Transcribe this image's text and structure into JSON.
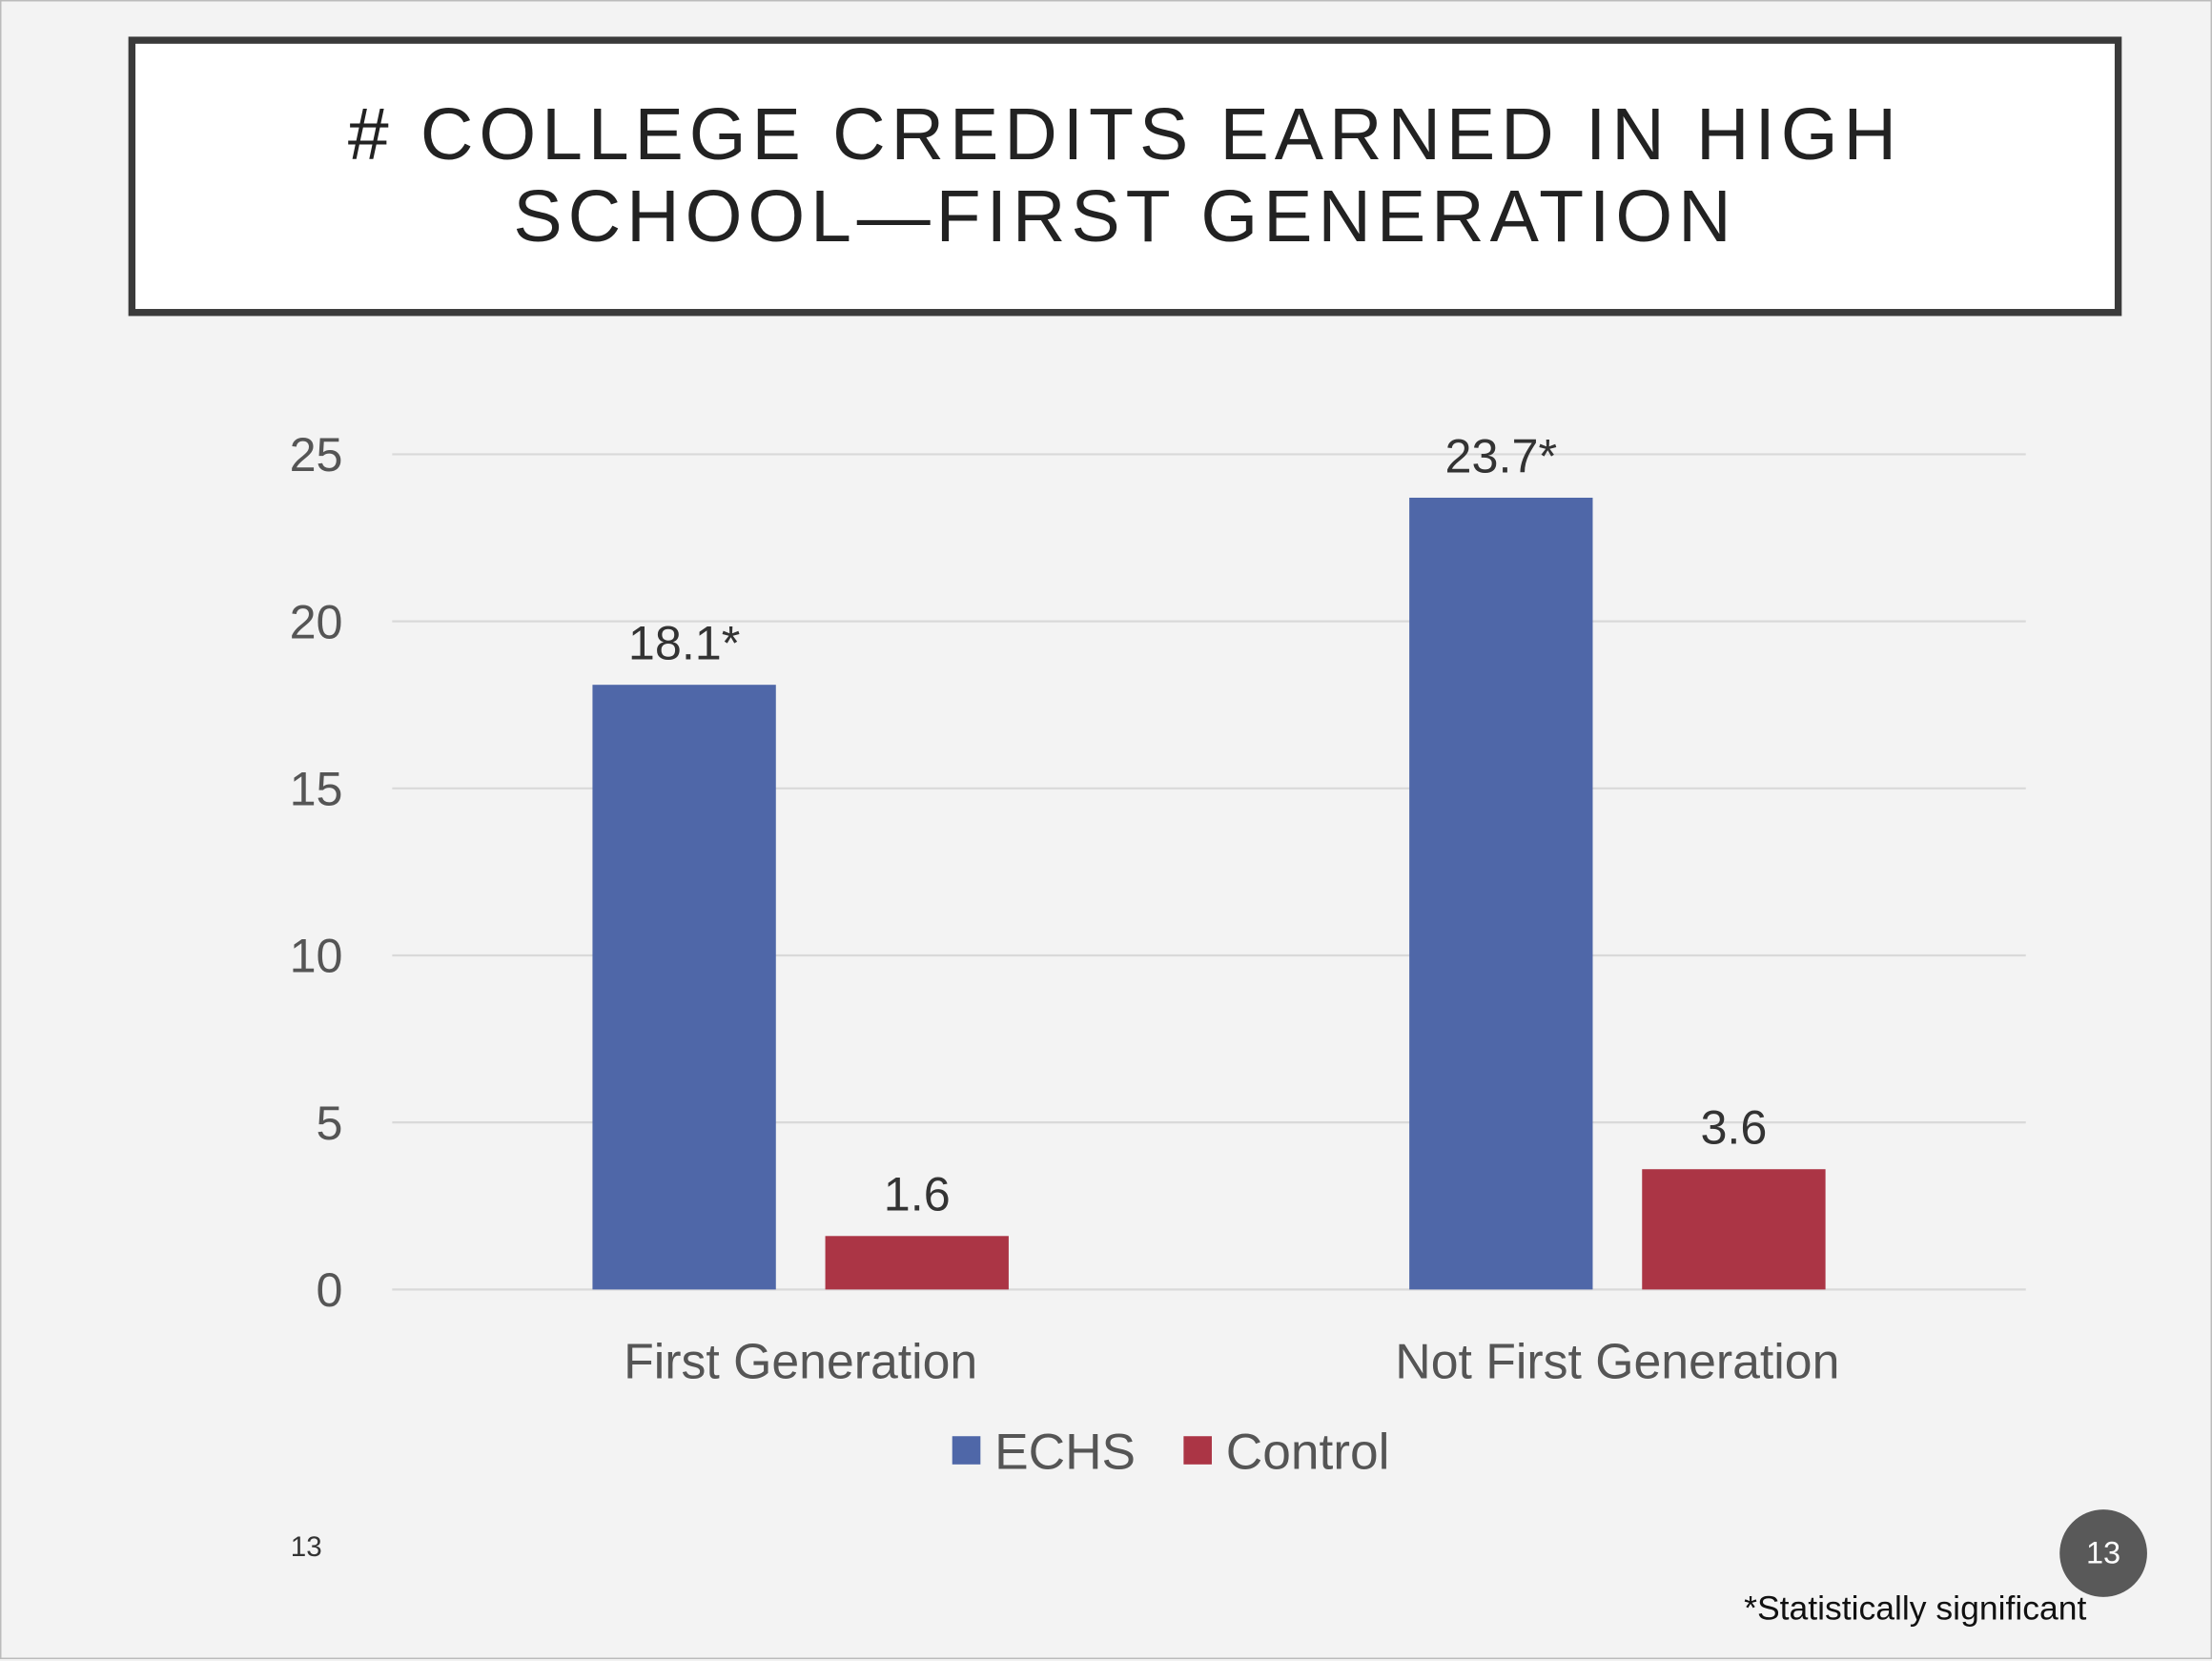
{
  "slide": {
    "number": "13",
    "badge": "13",
    "footnote": "*Statistically significant"
  },
  "chart_data": {
    "type": "bar",
    "title": "# College Credits Earned in High School—First Generation",
    "categories": [
      "First Generation",
      "Not First Generation"
    ],
    "series": [
      {
        "name": "ECHS",
        "color": "#4f67a8",
        "values": [
          18.1,
          23.7
        ],
        "labels": [
          "18.1*",
          "23.7*"
        ]
      },
      {
        "name": "Control",
        "color": "#ab3545",
        "values": [
          1.6,
          3.6
        ],
        "labels": [
          "1.6",
          "3.6"
        ]
      }
    ],
    "ylim": [
      0,
      25
    ],
    "yticks": [
      0,
      5,
      10,
      15,
      20,
      25
    ],
    "grid": true,
    "legend": "bottom",
    "xlabel": "",
    "ylabel": ""
  }
}
